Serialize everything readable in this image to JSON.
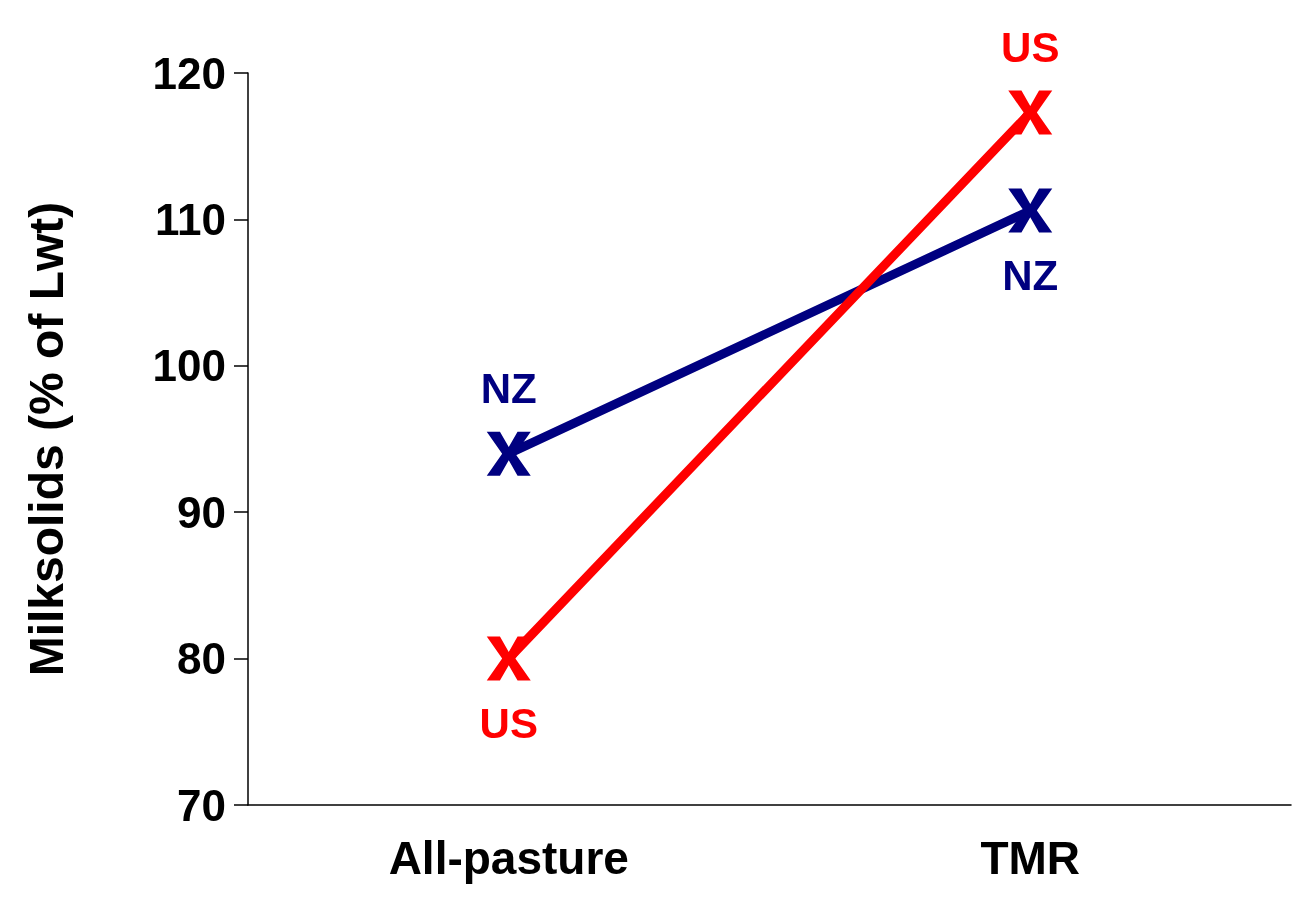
{
  "chart_data": {
    "type": "line",
    "ylabel": "Milksolids (% of Lwt)",
    "categories": [
      "All-pasture",
      "TMR"
    ],
    "series": [
      {
        "name": "NZ",
        "color": "#000080",
        "values": [
          94,
          110.6
        ]
      },
      {
        "name": "US",
        "color": "#ff0000",
        "values": [
          80,
          117.3
        ]
      }
    ],
    "ylim": [
      70,
      120
    ],
    "yticks": [
      70,
      80,
      90,
      100,
      110,
      120
    ],
    "grid": false,
    "legend": false,
    "marker": "cross",
    "line_style": "solid"
  }
}
